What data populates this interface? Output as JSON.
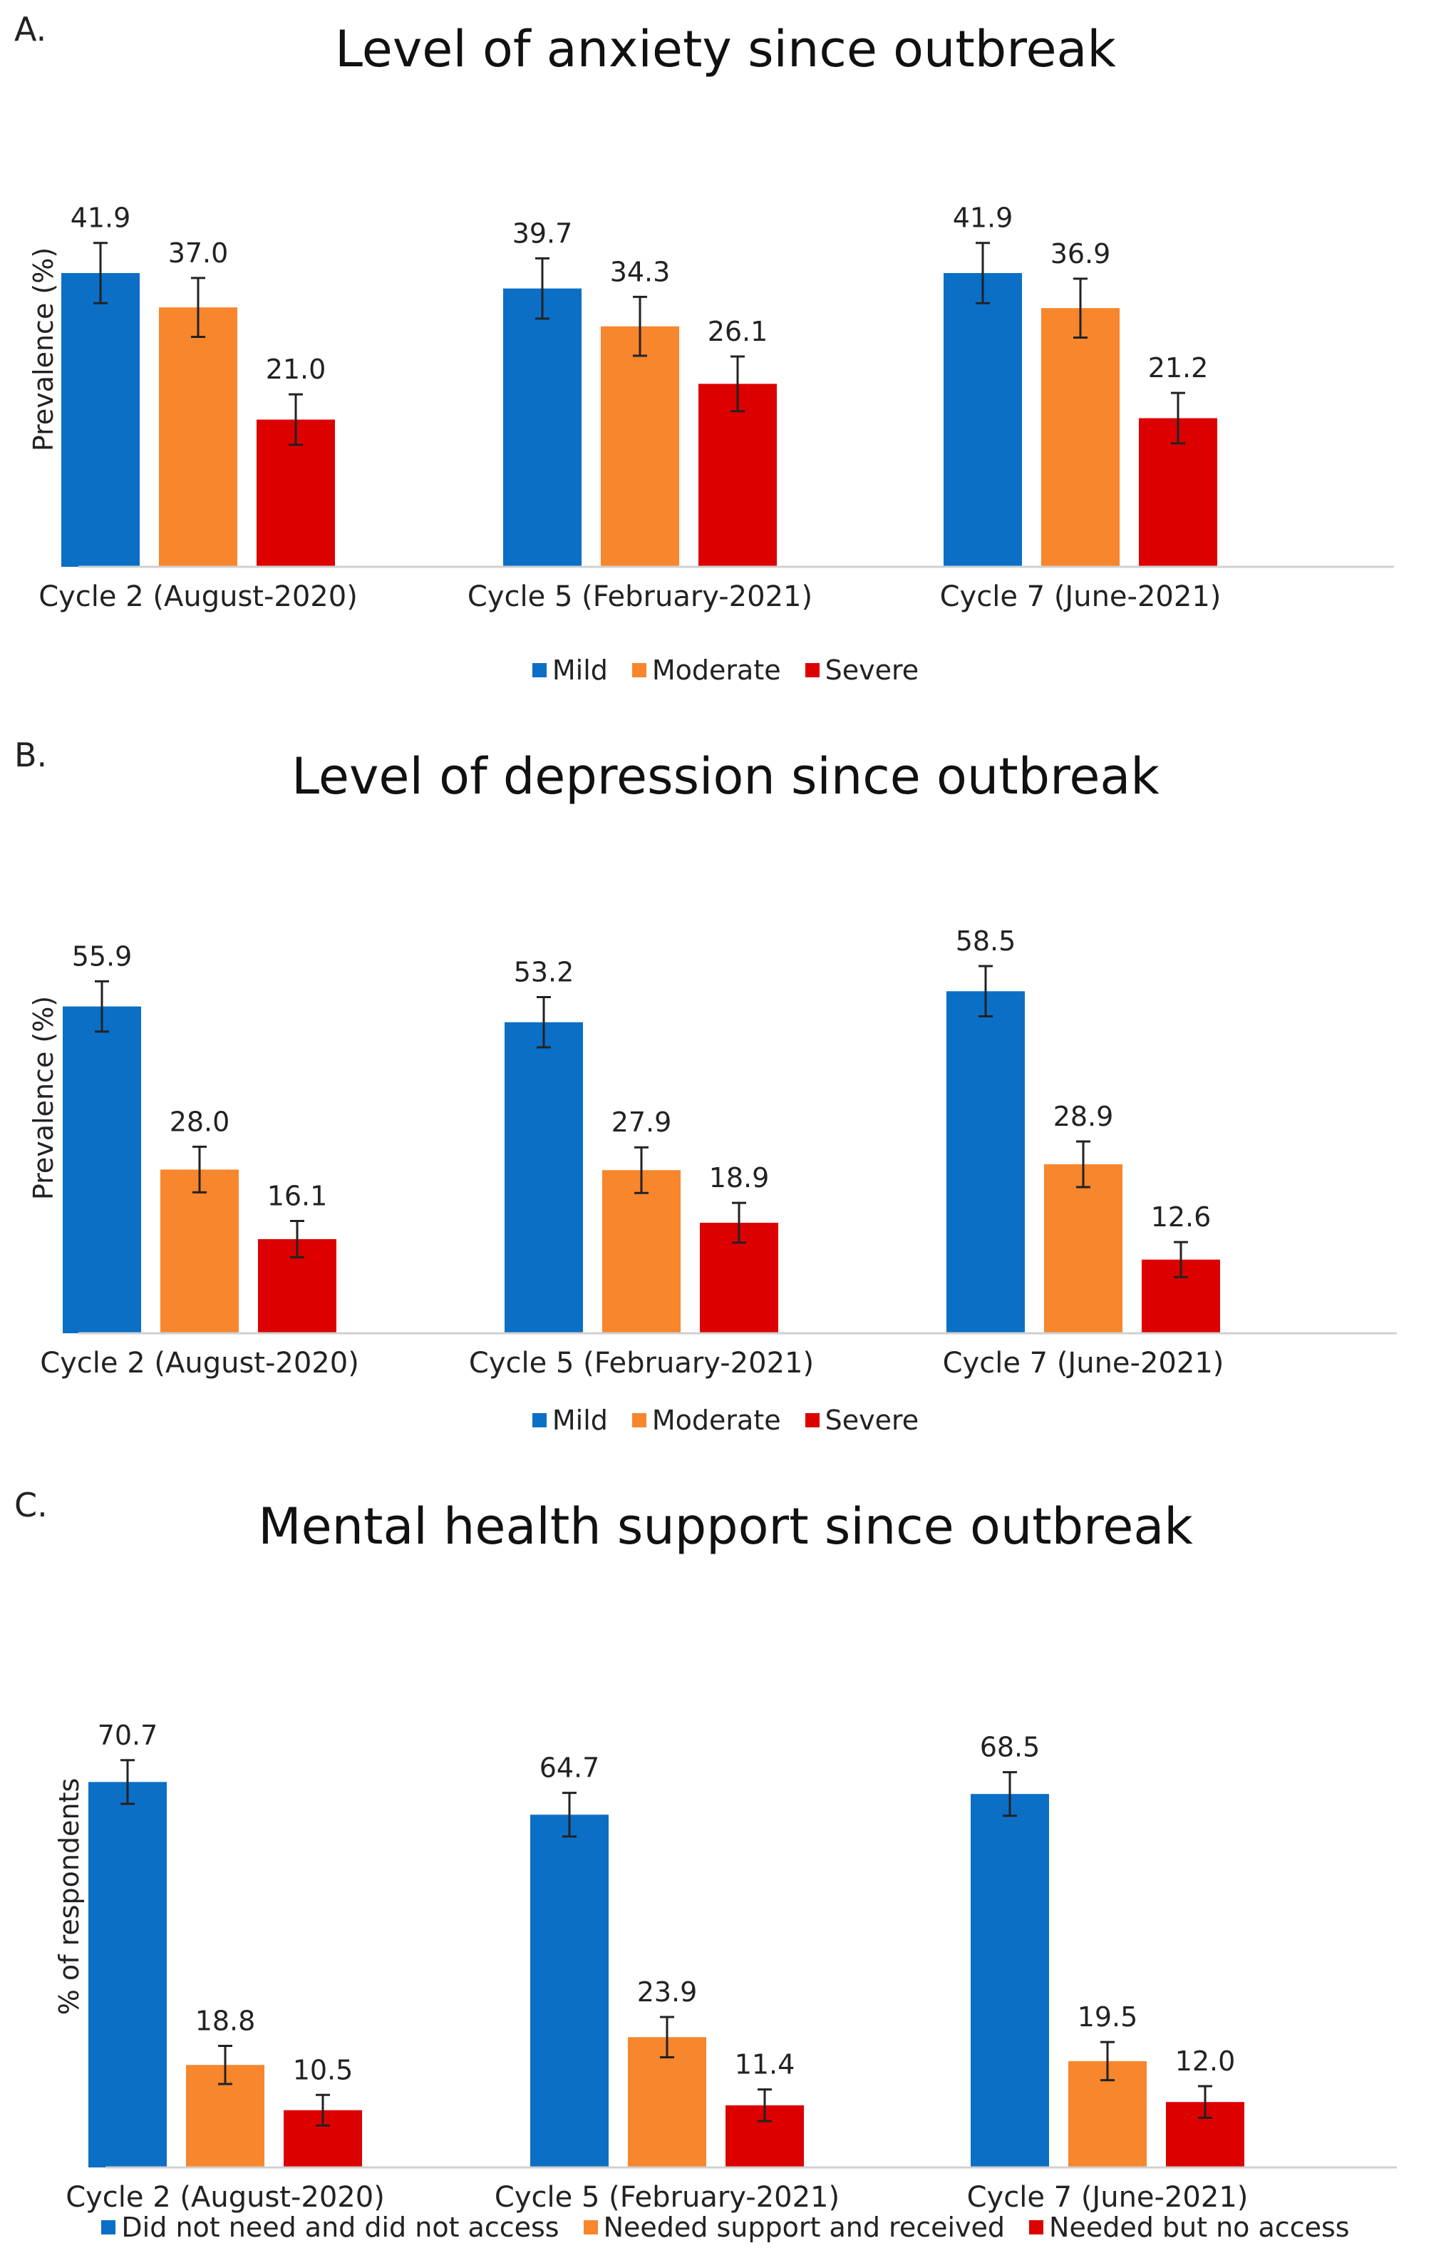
{
  "colors": {
    "mild": "#0b6fc6",
    "moderate": "#f7862c",
    "severe": "#dd0000",
    "axis": "#d0d0d0",
    "error": "#222222"
  },
  "chart_data": [
    {
      "id": "a",
      "letter": "A.",
      "type": "bar",
      "title": "Level of anxiety since outbreak",
      "ylabel": "Prevalence (%)",
      "categories": [
        "Cycle 2 (August-2020)",
        "Cycle 5 (February-2021)",
        "Cycle 7 (June-2021)"
      ],
      "series": [
        {
          "name": "Mild",
          "color_key": "mild",
          "values": [
            41.9,
            39.7,
            41.9
          ],
          "labels": [
            "41.9",
            "39.7",
            "41.9"
          ],
          "err": [
            4.3,
            4.3,
            4.3
          ]
        },
        {
          "name": "Moderate",
          "color_key": "moderate",
          "values": [
            37.0,
            34.3,
            36.9
          ],
          "labels": [
            "37.0",
            "34.3",
            "36.9"
          ],
          "err": [
            4.2,
            4.2,
            4.2
          ]
        },
        {
          "name": "Severe",
          "color_key": "severe",
          "values": [
            21.0,
            26.1,
            21.2
          ],
          "labels": [
            "21.0",
            "26.1",
            "21.2"
          ],
          "err": [
            3.6,
            3.9,
            3.6
          ]
        }
      ],
      "ylim": [
        0,
        60
      ],
      "grid": false,
      "legend": "bottom"
    },
    {
      "id": "b",
      "letter": "B.",
      "type": "bar",
      "title": "Level of depression since outbreak",
      "ylabel": "Prevalence (%)",
      "categories": [
        "Cycle 2 (August-2020)",
        "Cycle 5 (February-2021)",
        "Cycle 7 (June-2021)"
      ],
      "series": [
        {
          "name": "Mild",
          "color_key": "mild",
          "values": [
            55.9,
            53.2,
            58.5
          ],
          "labels": [
            "55.9",
            "53.2",
            "58.5"
          ],
          "err": [
            4.3,
            4.3,
            4.3
          ]
        },
        {
          "name": "Moderate",
          "color_key": "moderate",
          "values": [
            28.0,
            27.9,
            28.9
          ],
          "labels": [
            "28.0",
            "27.9",
            "28.9"
          ],
          "err": [
            3.9,
            3.9,
            3.9
          ]
        },
        {
          "name": "Severe",
          "color_key": "severe",
          "values": [
            16.1,
            18.9,
            12.6
          ],
          "labels": [
            "16.1",
            "18.9",
            "12.6"
          ],
          "err": [
            3.1,
            3.4,
            3.0
          ]
        }
      ],
      "ylim": [
        0,
        75
      ],
      "grid": false,
      "legend": "bottom"
    },
    {
      "id": "c",
      "letter": "C.",
      "type": "bar",
      "title": "Mental health support since outbreak",
      "ylabel": "% of respondents",
      "categories": [
        "Cycle 2 (August-2020)",
        "Cycle 5 (February-2021)",
        "Cycle 7 (June-2021)"
      ],
      "series": [
        {
          "name": "Did not need and did not access",
          "color_key": "mild",
          "values": [
            70.7,
            64.7,
            68.5
          ],
          "labels": [
            "70.7",
            "64.7",
            "68.5"
          ],
          "err": [
            4.0,
            4.0,
            4.0
          ]
        },
        {
          "name": "Needed support and received",
          "color_key": "moderate",
          "values": [
            18.8,
            23.9,
            19.5
          ],
          "labels": [
            "18.8",
            "23.9",
            "19.5"
          ],
          "err": [
            3.5,
            3.7,
            3.5
          ]
        },
        {
          "name": "Needed but no access",
          "color_key": "severe",
          "values": [
            10.5,
            11.4,
            12.0
          ],
          "labels": [
            "10.5",
            "11.4",
            "12.0"
          ],
          "err": [
            2.8,
            2.9,
            2.9
          ]
        }
      ],
      "ylim": [
        0,
        85
      ],
      "grid": false,
      "legend": "bottom"
    }
  ]
}
